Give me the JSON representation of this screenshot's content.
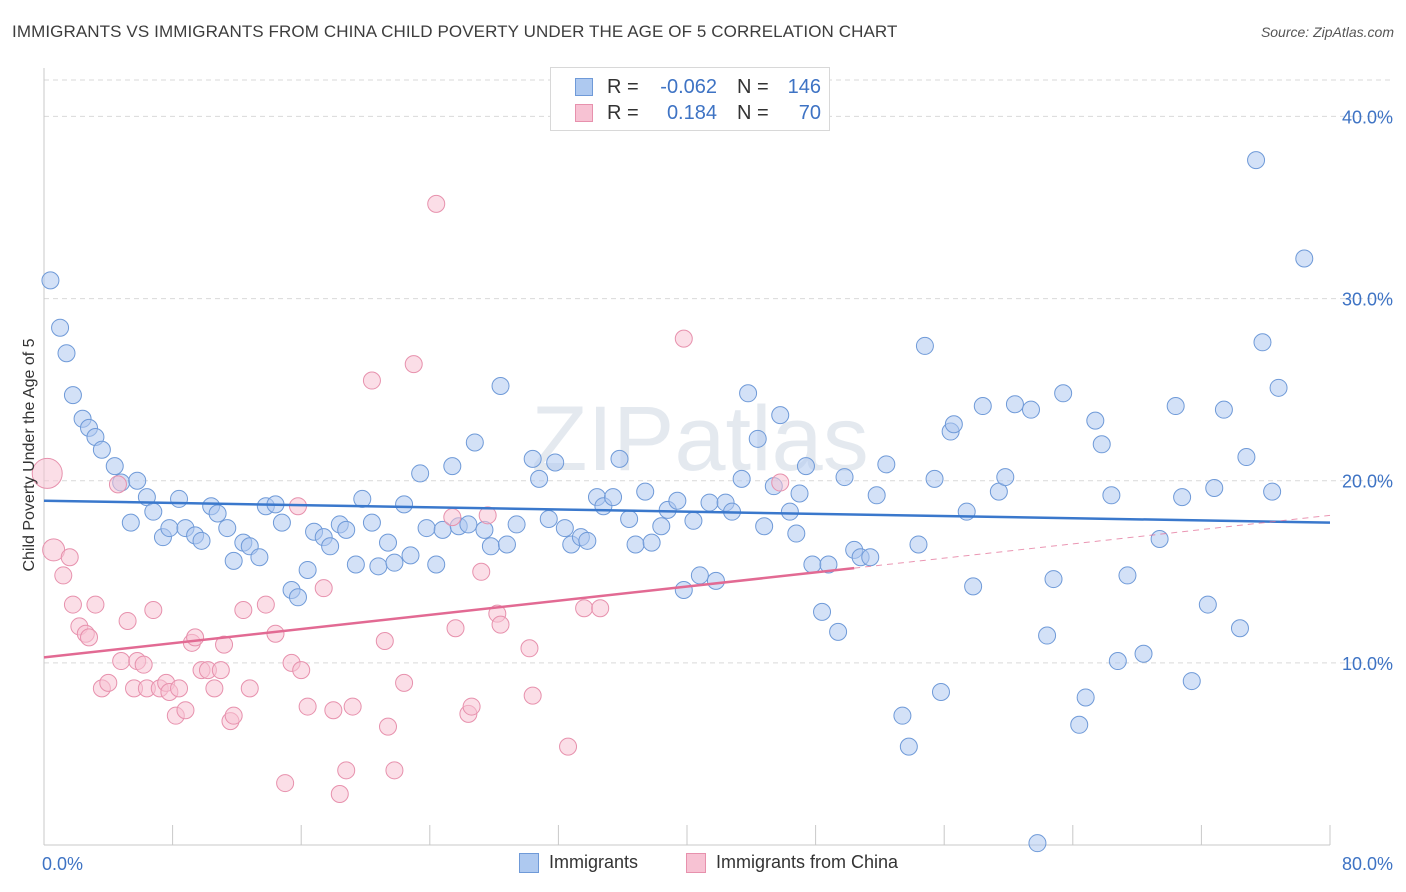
{
  "title": "IMMIGRANTS VS IMMIGRANTS FROM CHINA CHILD POVERTY UNDER THE AGE OF 5 CORRELATION CHART",
  "source": "Source: ZipAtlas.com",
  "watermark": "ZIPatlas",
  "legend_top": {
    "rows": [
      {
        "r_label": "R =",
        "r_value": "-0.062",
        "n_label": "N =",
        "n_value": "146"
      },
      {
        "r_label": "R =",
        "r_value": "0.184",
        "n_label": "N =",
        "n_value": "70"
      }
    ]
  },
  "legend_bottom": [
    "Immigrants",
    "Immigrants from China"
  ],
  "colors": {
    "blue_fill": "#aec9f0",
    "blue_stroke": "#6f9ad8",
    "blue_line": "#3a78cc",
    "pink_fill": "#f7c2d3",
    "pink_stroke": "#e791ad",
    "pink_line": "#e26a93",
    "tick_text": "#3e73c4",
    "grid": "#d9d9d9"
  },
  "chart_data": {
    "type": "scatter",
    "title": "IMMIGRANTS VS IMMIGRANTS FROM CHINA CHILD POVERTY UNDER THE AGE OF 5 CORRELATION CHART",
    "ylabel": "Child Poverty Under the Age of 5",
    "xlabel": "",
    "xlim": [
      0,
      80
    ],
    "ylim": [
      0,
      42
    ],
    "x_ticks": [
      "0.0%",
      "80.0%"
    ],
    "y_ticks": [
      {
        "v": 10,
        "label": "10.0%"
      },
      {
        "v": 20,
        "label": "20.0%"
      },
      {
        "v": 30,
        "label": "30.0%"
      },
      {
        "v": 40,
        "label": "40.0%"
      }
    ],
    "grid": "horizontal dashed",
    "legend_placement": "top-center and bottom",
    "series": [
      {
        "name": "Immigrants",
        "color": "#aec9f0",
        "trend": {
          "x": [
            0,
            80
          ],
          "y": [
            18.9,
            17.7
          ],
          "style": "solid"
        },
        "points": [
          [
            0.4,
            31.0
          ],
          [
            1.0,
            28.4
          ],
          [
            1.4,
            27.0
          ],
          [
            1.8,
            24.7
          ],
          [
            2.4,
            23.4
          ],
          [
            2.8,
            22.9
          ],
          [
            3.2,
            22.4
          ],
          [
            3.6,
            21.7
          ],
          [
            4.4,
            20.8
          ],
          [
            4.8,
            19.9
          ],
          [
            5.8,
            20.0
          ],
          [
            5.4,
            17.7
          ],
          [
            6.4,
            19.1
          ],
          [
            6.8,
            18.3
          ],
          [
            7.4,
            16.9
          ],
          [
            7.8,
            17.4
          ],
          [
            8.4,
            19.0
          ],
          [
            8.8,
            17.4
          ],
          [
            9.4,
            17.0
          ],
          [
            9.8,
            16.7
          ],
          [
            10.4,
            18.6
          ],
          [
            10.8,
            18.2
          ],
          [
            11.4,
            17.4
          ],
          [
            11.8,
            15.6
          ],
          [
            12.4,
            16.6
          ],
          [
            12.8,
            16.4
          ],
          [
            13.4,
            15.8
          ],
          [
            13.8,
            18.6
          ],
          [
            14.4,
            18.7
          ],
          [
            14.8,
            17.7
          ],
          [
            15.4,
            14.0
          ],
          [
            15.8,
            13.6
          ],
          [
            16.4,
            15.1
          ],
          [
            16.8,
            17.2
          ],
          [
            17.4,
            16.9
          ],
          [
            17.8,
            16.4
          ],
          [
            18.4,
            17.6
          ],
          [
            18.8,
            17.3
          ],
          [
            19.4,
            15.4
          ],
          [
            19.8,
            19.0
          ],
          [
            20.4,
            17.7
          ],
          [
            20.8,
            15.3
          ],
          [
            21.4,
            16.6
          ],
          [
            21.8,
            15.5
          ],
          [
            22.4,
            18.7
          ],
          [
            22.8,
            15.9
          ],
          [
            23.4,
            20.4
          ],
          [
            23.8,
            17.4
          ],
          [
            24.4,
            15.4
          ],
          [
            24.8,
            17.3
          ],
          [
            25.4,
            20.8
          ],
          [
            25.8,
            17.5
          ],
          [
            26.4,
            17.6
          ],
          [
            26.8,
            22.1
          ],
          [
            27.4,
            17.3
          ],
          [
            27.8,
            16.4
          ],
          [
            28.4,
            25.2
          ],
          [
            28.8,
            16.5
          ],
          [
            29.4,
            17.6
          ],
          [
            30.4,
            21.2
          ],
          [
            30.8,
            20.1
          ],
          [
            31.4,
            17.9
          ],
          [
            31.8,
            21.0
          ],
          [
            32.4,
            17.4
          ],
          [
            32.8,
            16.5
          ],
          [
            33.4,
            16.9
          ],
          [
            33.8,
            16.7
          ],
          [
            34.4,
            19.1
          ],
          [
            34.8,
            18.6
          ],
          [
            35.4,
            19.1
          ],
          [
            35.8,
            21.2
          ],
          [
            36.4,
            17.9
          ],
          [
            36.8,
            16.5
          ],
          [
            37.4,
            19.4
          ],
          [
            37.8,
            16.6
          ],
          [
            38.4,
            17.5
          ],
          [
            38.8,
            18.4
          ],
          [
            39.4,
            18.9
          ],
          [
            39.8,
            14.0
          ],
          [
            40.4,
            17.8
          ],
          [
            40.8,
            14.8
          ],
          [
            41.4,
            18.8
          ],
          [
            41.8,
            14.5
          ],
          [
            42.4,
            18.8
          ],
          [
            42.8,
            18.3
          ],
          [
            43.4,
            20.1
          ],
          [
            43.8,
            24.8
          ],
          [
            44.4,
            22.3
          ],
          [
            44.8,
            17.5
          ],
          [
            45.4,
            19.7
          ],
          [
            45.8,
            23.6
          ],
          [
            46.4,
            18.3
          ],
          [
            46.8,
            17.1
          ],
          [
            47.4,
            20.8
          ],
          [
            47.8,
            15.4
          ],
          [
            48.4,
            12.8
          ],
          [
            48.8,
            15.4
          ],
          [
            49.4,
            11.7
          ],
          [
            49.8,
            20.2
          ],
          [
            50.4,
            16.2
          ],
          [
            50.8,
            15.8
          ],
          [
            51.4,
            15.8
          ],
          [
            51.8,
            19.2
          ],
          [
            52.4,
            20.9
          ],
          [
            53.4,
            7.1
          ],
          [
            53.8,
            5.4
          ],
          [
            54.4,
            16.5
          ],
          [
            54.8,
            27.4
          ],
          [
            55.4,
            20.1
          ],
          [
            55.8,
            8.4
          ],
          [
            56.4,
            22.7
          ],
          [
            57.4,
            18.3
          ],
          [
            57.8,
            14.2
          ],
          [
            58.4,
            24.1
          ],
          [
            59.4,
            19.4
          ],
          [
            59.8,
            20.2
          ],
          [
            60.4,
            24.2
          ],
          [
            61.4,
            23.9
          ],
          [
            61.8,
            0.1
          ],
          [
            62.4,
            11.5
          ],
          [
            62.8,
            14.6
          ],
          [
            63.4,
            24.8
          ],
          [
            64.4,
            6.6
          ],
          [
            64.8,
            8.1
          ],
          [
            65.4,
            23.3
          ],
          [
            65.8,
            22.0
          ],
          [
            66.4,
            19.2
          ],
          [
            66.8,
            10.1
          ],
          [
            67.4,
            14.8
          ],
          [
            68.4,
            10.5
          ],
          [
            69.4,
            16.8
          ],
          [
            70.4,
            24.1
          ],
          [
            70.8,
            19.1
          ],
          [
            71.4,
            9.0
          ],
          [
            72.4,
            13.2
          ],
          [
            72.8,
            19.6
          ],
          [
            73.4,
            23.9
          ],
          [
            74.4,
            11.9
          ],
          [
            74.8,
            21.3
          ],
          [
            75.4,
            37.6
          ],
          [
            75.8,
            27.6
          ],
          [
            76.4,
            19.4
          ],
          [
            76.8,
            25.1
          ],
          [
            78.4,
            32.2
          ],
          [
            56.6,
            23.1
          ],
          [
            47.0,
            19.3
          ]
        ]
      },
      {
        "name": "Immigrants from China",
        "color": "#f7c2d3",
        "trend": {
          "x": [
            0,
            50.4
          ],
          "y": [
            10.3,
            15.2
          ],
          "style": "solid",
          "extended_x": [
            50.4,
            80
          ],
          "extended_y": [
            15.2,
            18.1
          ],
          "extended_style": "dashed"
        },
        "points": [
          [
            0.2,
            20.4
          ],
          [
            0.6,
            16.2
          ],
          [
            1.2,
            14.8
          ],
          [
            1.6,
            15.8
          ],
          [
            1.8,
            13.2
          ],
          [
            2.2,
            12.0
          ],
          [
            2.6,
            11.6
          ],
          [
            2.8,
            11.4
          ],
          [
            3.2,
            13.2
          ],
          [
            3.6,
            8.6
          ],
          [
            4.0,
            8.9
          ],
          [
            4.6,
            19.8
          ],
          [
            4.8,
            10.1
          ],
          [
            5.2,
            12.3
          ],
          [
            5.6,
            8.6
          ],
          [
            5.8,
            10.1
          ],
          [
            6.2,
            9.9
          ],
          [
            6.4,
            8.6
          ],
          [
            6.8,
            12.9
          ],
          [
            7.2,
            8.6
          ],
          [
            7.6,
            8.9
          ],
          [
            7.8,
            8.4
          ],
          [
            8.2,
            7.1
          ],
          [
            8.4,
            8.6
          ],
          [
            8.8,
            7.4
          ],
          [
            9.2,
            11.1
          ],
          [
            9.4,
            11.4
          ],
          [
            9.8,
            9.6
          ],
          [
            10.2,
            9.6
          ],
          [
            10.6,
            8.6
          ],
          [
            11.0,
            9.6
          ],
          [
            11.2,
            11.0
          ],
          [
            11.6,
            6.8
          ],
          [
            11.8,
            7.1
          ],
          [
            12.4,
            12.9
          ],
          [
            12.8,
            8.6
          ],
          [
            13.8,
            13.2
          ],
          [
            14.4,
            11.6
          ],
          [
            15.0,
            3.4
          ],
          [
            15.4,
            10.0
          ],
          [
            15.8,
            18.6
          ],
          [
            16.0,
            9.6
          ],
          [
            16.4,
            7.6
          ],
          [
            17.4,
            14.1
          ],
          [
            18.0,
            7.4
          ],
          [
            18.4,
            2.8
          ],
          [
            18.8,
            4.1
          ],
          [
            19.2,
            7.6
          ],
          [
            20.4,
            25.5
          ],
          [
            21.2,
            11.2
          ],
          [
            21.4,
            6.5
          ],
          [
            21.8,
            4.1
          ],
          [
            22.4,
            8.9
          ],
          [
            23.0,
            26.4
          ],
          [
            24.4,
            35.2
          ],
          [
            25.4,
            18.0
          ],
          [
            25.6,
            11.9
          ],
          [
            26.4,
            7.2
          ],
          [
            26.6,
            7.6
          ],
          [
            27.2,
            15.0
          ],
          [
            27.6,
            18.1
          ],
          [
            28.2,
            12.7
          ],
          [
            28.4,
            12.1
          ],
          [
            30.2,
            10.8
          ],
          [
            30.4,
            8.2
          ],
          [
            32.6,
            5.4
          ],
          [
            33.6,
            13.0
          ],
          [
            34.6,
            13.0
          ],
          [
            39.8,
            27.8
          ],
          [
            45.8,
            19.9
          ]
        ]
      }
    ]
  }
}
